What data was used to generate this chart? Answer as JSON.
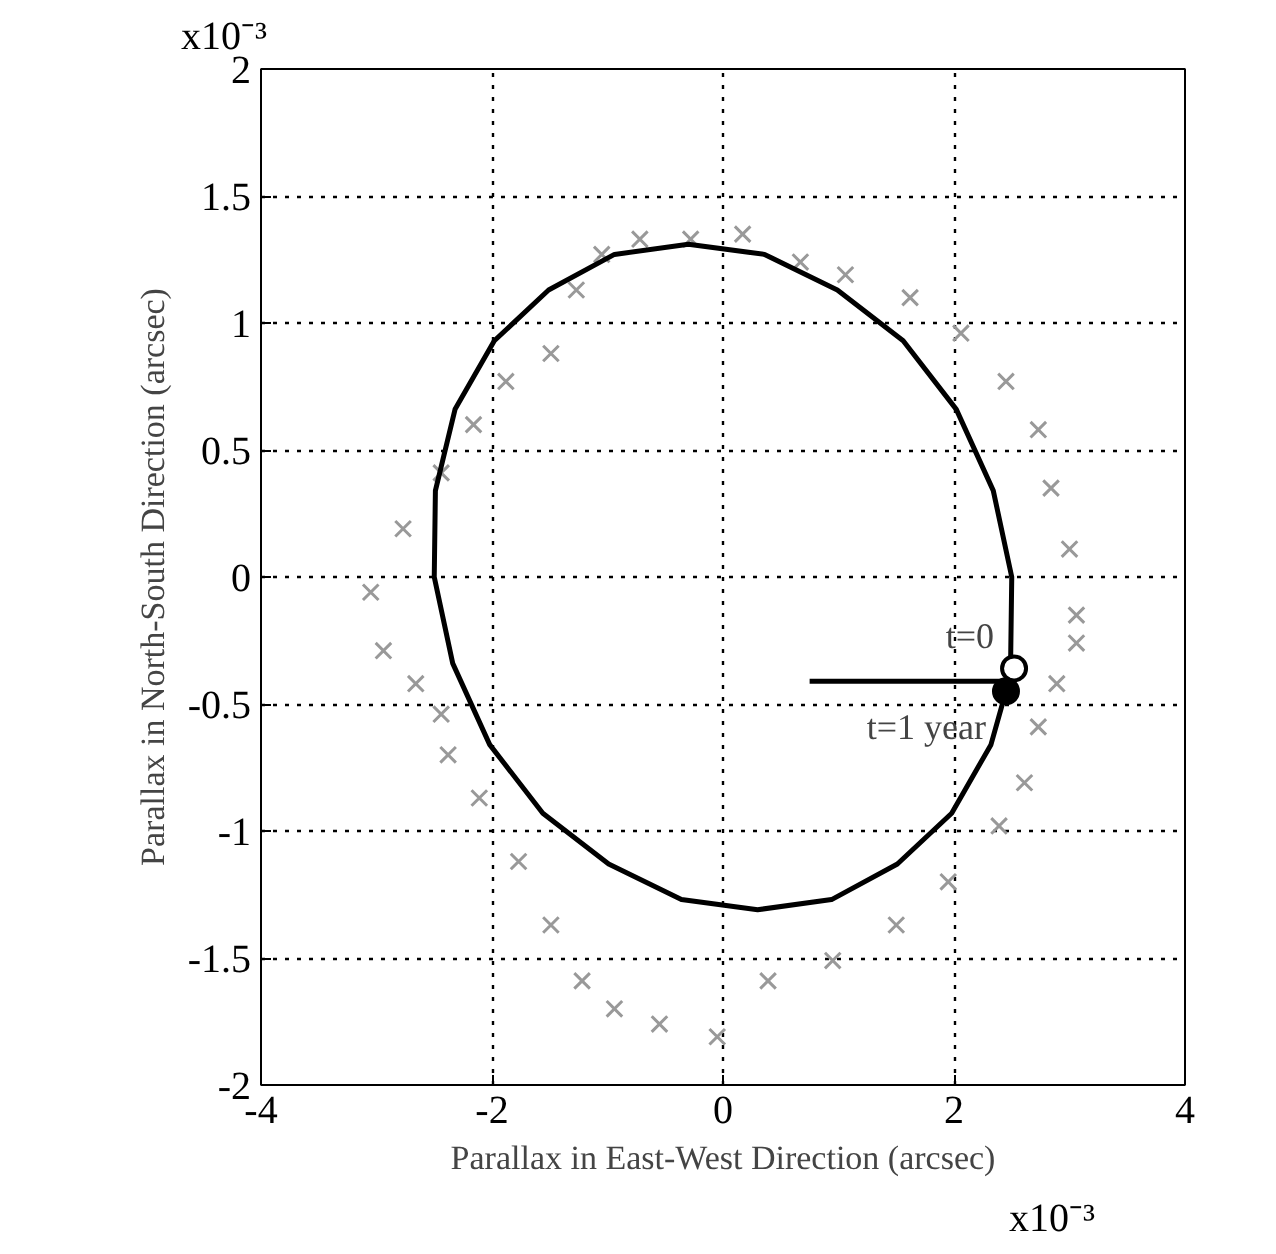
{
  "chart_data": {
    "type": "scatter",
    "xlabel": "Parallax in East-West Direction (arcsec)",
    "ylabel": "Parallax in North-South Direction (arcsec)",
    "xlim": [
      -4,
      4
    ],
    "ylim": [
      -2,
      2
    ],
    "xticks": [
      -4,
      -2,
      0,
      2,
      4
    ],
    "yticks": [
      -2,
      -1.5,
      -1,
      -0.5,
      0,
      0.5,
      1,
      1.5,
      2
    ],
    "grid": true,
    "annotations": [
      "x10⁻³",
      "x10⁻³",
      {
        "text": "t=0",
        "x": 2.52,
        "y": -0.36
      },
      {
        "text": "t=1 year",
        "x": 2.45,
        "y": -0.45
      }
    ],
    "series": [
      {
        "marker": "cross",
        "color": "#999999",
        "x": [
          3.06,
          3.0,
          2.84,
          2.73,
          2.45,
          2.06,
          1.62,
          1.06,
          0.67,
          0.17,
          -0.28,
          -0.72,
          -1.05,
          -1.27,
          -1.49,
          -1.88,
          -2.16,
          -2.44,
          -2.77,
          -3.05,
          -2.94,
          -2.66,
          -2.44,
          -2.38,
          -2.11,
          -1.77,
          -1.49,
          -1.22,
          -0.94,
          -0.55,
          -0.05,
          0.39,
          0.95,
          1.5,
          1.95,
          2.39,
          2.61,
          2.73,
          2.89,
          3.06
        ],
        "values": [
          -0.15,
          0.11,
          0.35,
          0.58,
          0.77,
          0.96,
          1.1,
          1.19,
          1.24,
          1.35,
          1.33,
          1.33,
          1.27,
          1.13,
          0.88,
          0.77,
          0.6,
          0.41,
          0.19,
          -0.06,
          -0.29,
          -0.42,
          -0.54,
          -0.7,
          -0.87,
          -1.12,
          -1.37,
          -1.59,
          -1.7,
          -1.76,
          -1.81,
          -1.59,
          -1.51,
          -1.37,
          -1.2,
          -0.98,
          -0.81,
          -0.59,
          -0.42,
          -0.26
        ]
      },
      {
        "type": "line",
        "color": "#000000",
        "x": [
          2.49,
          2.5,
          2.34,
          2.02,
          1.56,
          0.99,
          0.36,
          -0.3,
          -0.94,
          -1.51,
          -1.98,
          -2.32,
          -2.49,
          -2.5,
          -2.34,
          -2.02,
          -1.56,
          -0.99,
          -0.36,
          0.3,
          0.94,
          1.51,
          1.98,
          2.32,
          2.45
        ],
        "values": [
          -0.34,
          0,
          0.34,
          0.66,
          0.93,
          1.13,
          1.27,
          1.31,
          1.27,
          1.13,
          0.93,
          0.66,
          0.34,
          0,
          -0.34,
          -0.66,
          -0.93,
          -1.13,
          -1.27,
          -1.31,
          -1.27,
          -1.13,
          -0.93,
          -0.66,
          -0.45
        ]
      },
      {
        "type": "line",
        "color": "#000000",
        "x": [
          0.75,
          2.42
        ],
        "values": [
          -0.41,
          -0.41
        ]
      },
      {
        "type": "scatter",
        "marker": "circle",
        "color": "#ffffff",
        "x": [
          2.52
        ],
        "values": [
          -0.36
        ]
      },
      {
        "type": "scatter",
        "marker": "circle",
        "color": "#000000",
        "x": [
          2.45
        ],
        "values": [
          -0.45
        ]
      }
    ]
  }
}
